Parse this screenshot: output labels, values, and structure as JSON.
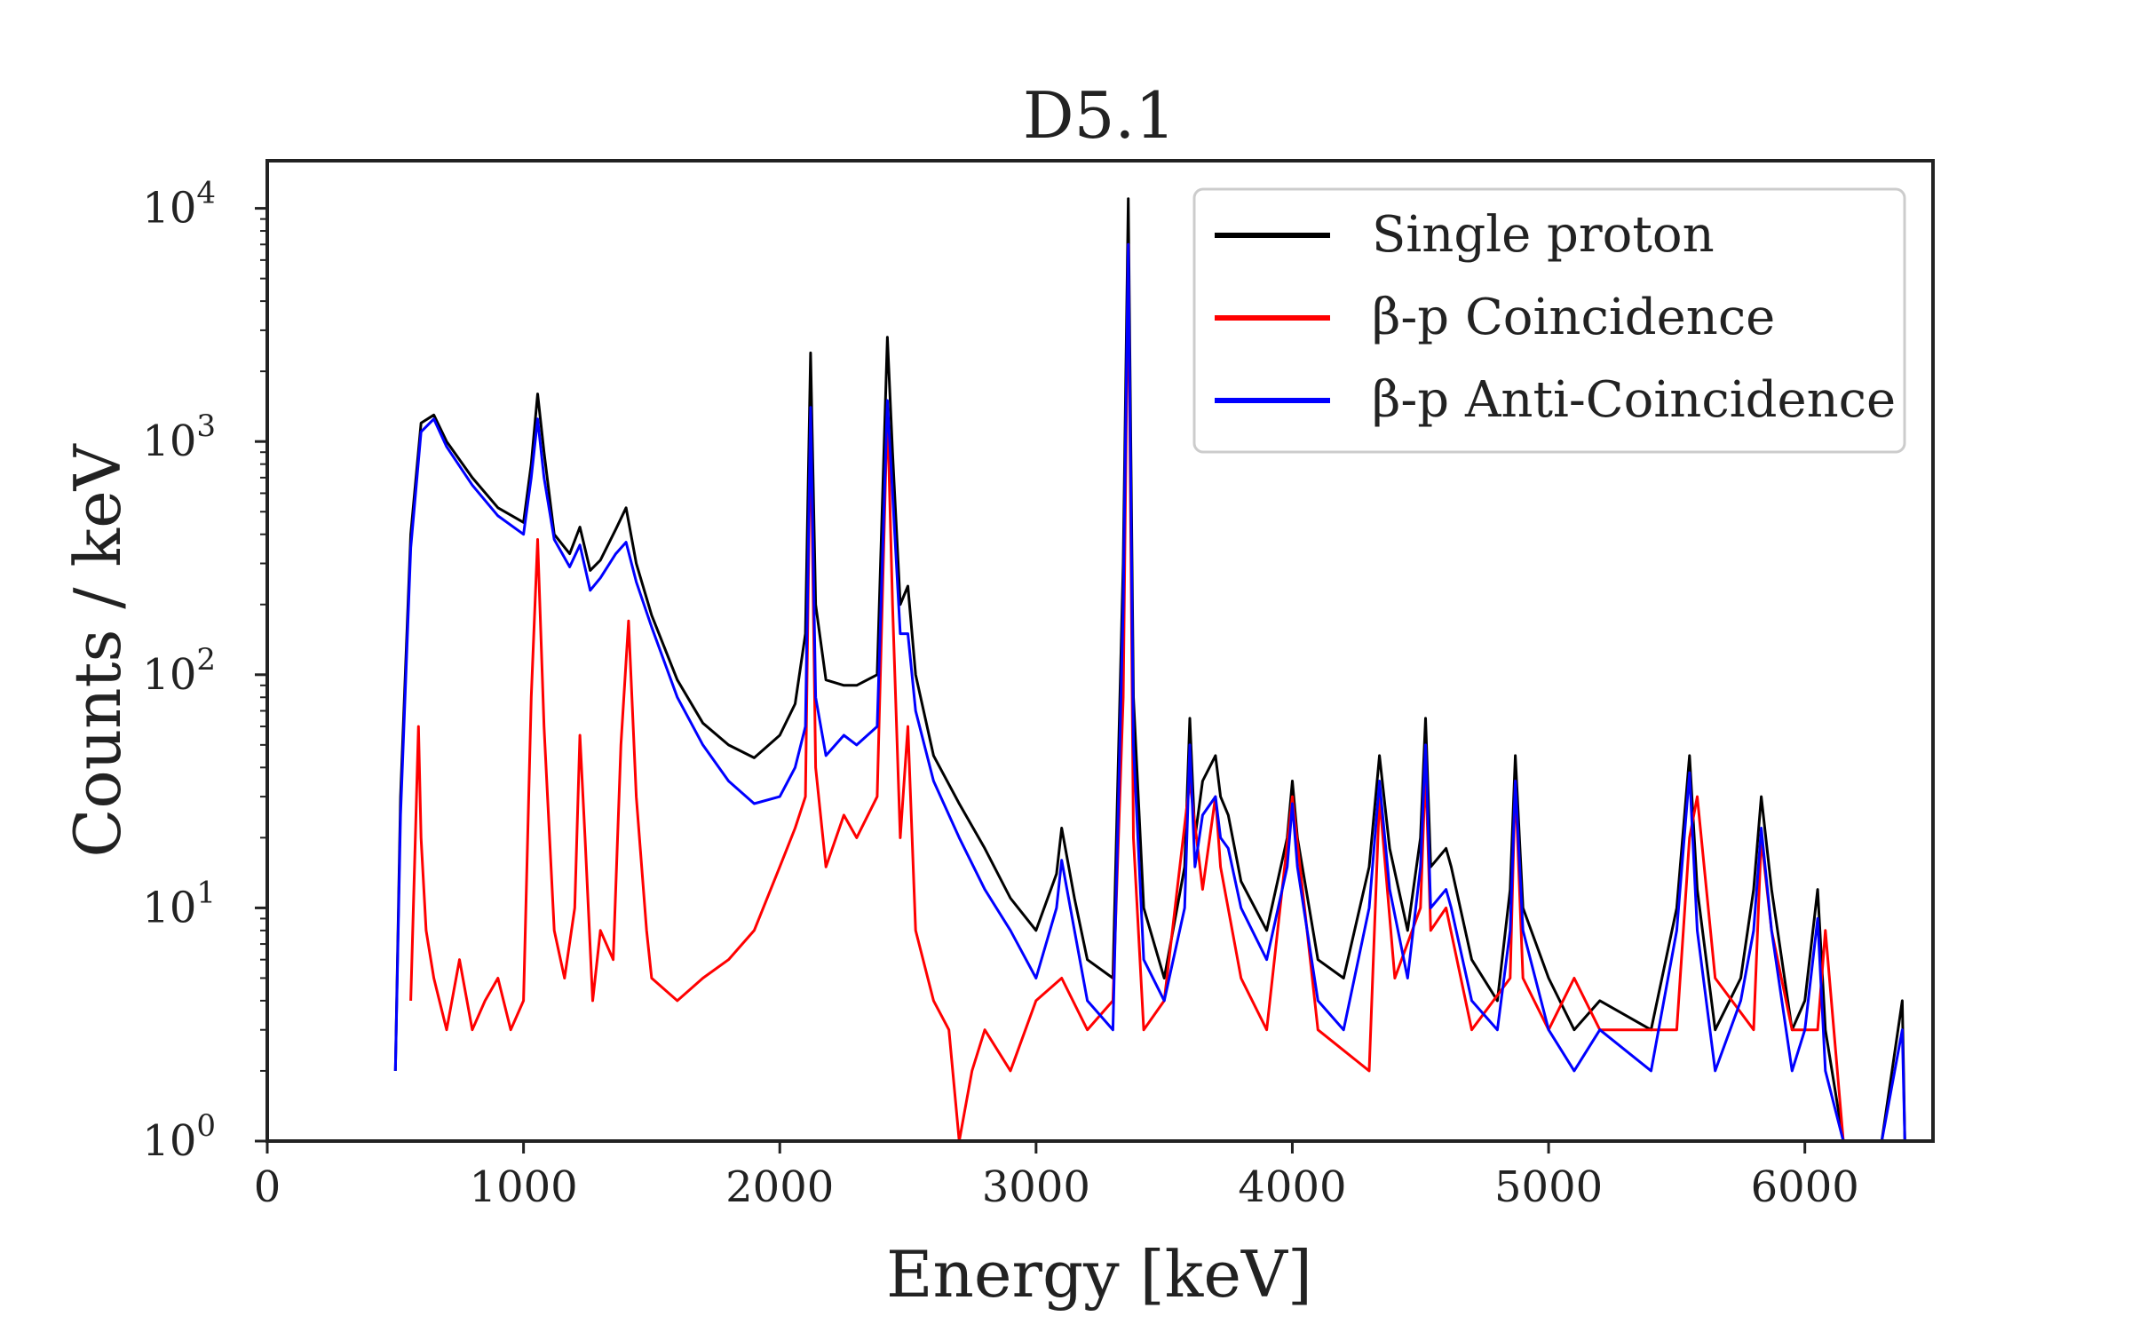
{
  "chart_data": {
    "type": "line",
    "title": "D5.1",
    "xlabel": "Energy [keV]",
    "ylabel": "Counts / keV",
    "xlim": [
      0,
      6500
    ],
    "ylim": [
      1,
      16000
    ],
    "yscale": "log",
    "grid": false,
    "legend_position": "top-right",
    "x_ticks": [
      {
        "value": 0,
        "label": "0"
      },
      {
        "value": 1000,
        "label": "1000"
      },
      {
        "value": 2000,
        "label": "2000"
      },
      {
        "value": 3000,
        "label": "3000"
      },
      {
        "value": 4000,
        "label": "4000"
      },
      {
        "value": 5000,
        "label": "5000"
      },
      {
        "value": 6000,
        "label": "6000"
      }
    ],
    "y_ticks": [
      {
        "value": 1,
        "base": "10",
        "exp": "0"
      },
      {
        "value": 10,
        "base": "10",
        "exp": "1"
      },
      {
        "value": 100,
        "base": "10",
        "exp": "2"
      },
      {
        "value": 1000,
        "base": "10",
        "exp": "3"
      },
      {
        "value": 10000,
        "base": "10",
        "exp": "4"
      }
    ],
    "series": [
      {
        "name": "Single proton",
        "color": "#000000",
        "x": [
          500,
          520,
          560,
          600,
          650,
          700,
          800,
          900,
          1000,
          1030,
          1055,
          1080,
          1120,
          1180,
          1220,
          1260,
          1300,
          1360,
          1400,
          1440,
          1500,
          1600,
          1700,
          1800,
          1900,
          2000,
          2060,
          2100,
          2120,
          2140,
          2180,
          2250,
          2300,
          2380,
          2420,
          2440,
          2470,
          2500,
          2530,
          2600,
          2700,
          2800,
          2900,
          3000,
          3080,
          3100,
          3150,
          3200,
          3300,
          3340,
          3360,
          3380,
          3420,
          3500,
          3580,
          3600,
          3620,
          3650,
          3700,
          3720,
          3750,
          3800,
          3900,
          3980,
          4000,
          4020,
          4100,
          4200,
          4300,
          4340,
          4380,
          4450,
          4500,
          4520,
          4540,
          4600,
          4620,
          4700,
          4800,
          4850,
          4870,
          4900,
          5000,
          5100,
          5200,
          5400,
          5500,
          5550,
          5580,
          5650,
          5750,
          5800,
          5830,
          5870,
          5950,
          6000,
          6050,
          6080,
          6150,
          6300,
          6380,
          6390
        ],
        "y": [
          2,
          30,
          400,
          1200,
          1300,
          1000,
          700,
          520,
          450,
          800,
          1600,
          900,
          400,
          330,
          430,
          280,
          310,
          420,
          520,
          300,
          180,
          95,
          62,
          50,
          44,
          55,
          75,
          150,
          2400,
          200,
          95,
          90,
          90,
          100,
          2800,
          900,
          200,
          240,
          100,
          45,
          28,
          18,
          11,
          8,
          14,
          22,
          11,
          6,
          5,
          300,
          11000,
          80,
          10,
          5,
          15,
          65,
          20,
          35,
          45,
          30,
          25,
          13,
          8,
          20,
          35,
          20,
          6,
          5,
          15,
          45,
          18,
          8,
          20,
          65,
          15,
          18,
          15,
          6,
          4,
          12,
          45,
          10,
          5,
          3,
          4,
          3,
          10,
          45,
          12,
          3,
          5,
          12,
          30,
          12,
          3,
          4,
          12,
          3,
          1,
          1,
          4,
          1
        ]
      },
      {
        "name": "β-p Coincidence",
        "color": "#ff0000",
        "x": [
          560,
          590,
          600,
          620,
          650,
          700,
          750,
          800,
          850,
          900,
          950,
          1000,
          1030,
          1055,
          1080,
          1120,
          1160,
          1200,
          1220,
          1240,
          1270,
          1300,
          1350,
          1380,
          1410,
          1440,
          1480,
          1500,
          1600,
          1700,
          1800,
          1900,
          2000,
          2060,
          2100,
          2120,
          2140,
          2180,
          2250,
          2300,
          2380,
          2420,
          2440,
          2470,
          2500,
          2530,
          2600,
          2660,
          2700,
          2750,
          2800,
          2900,
          3000,
          3100,
          3200,
          3300,
          3340,
          3360,
          3380,
          3420,
          3500,
          3600,
          3650,
          3700,
          3720,
          3800,
          3900,
          4000,
          4100,
          4300,
          4340,
          4400,
          4500,
          4520,
          4540,
          4600,
          4700,
          4850,
          4870,
          4900,
          5000,
          5100,
          5200,
          5400,
          5500,
          5550,
          5580,
          5650,
          5800,
          5830,
          5870,
          5950,
          6050,
          6080,
          6150
        ],
        "y": [
          4,
          60,
          20,
          8,
          5,
          3,
          6,
          3,
          4,
          5,
          3,
          4,
          80,
          380,
          60,
          8,
          5,
          10,
          55,
          20,
          4,
          8,
          6,
          50,
          170,
          30,
          8,
          5,
          4,
          5,
          6,
          8,
          15,
          22,
          30,
          1300,
          40,
          15,
          25,
          20,
          30,
          1400,
          200,
          20,
          60,
          8,
          4,
          3,
          1,
          2,
          3,
          2,
          4,
          5,
          3,
          4,
          80,
          7000,
          20,
          3,
          4,
          35,
          12,
          30,
          15,
          5,
          3,
          30,
          3,
          2,
          30,
          5,
          10,
          40,
          8,
          10,
          3,
          5,
          35,
          5,
          3,
          5,
          3,
          3,
          3,
          20,
          30,
          5,
          3,
          20,
          8,
          3,
          3,
          8,
          1
        ]
      },
      {
        "name": "β-p Anti-Coincidence",
        "color": "#0000ff",
        "x": [
          500,
          520,
          560,
          600,
          650,
          700,
          800,
          900,
          1000,
          1030,
          1055,
          1080,
          1120,
          1180,
          1220,
          1260,
          1300,
          1360,
          1400,
          1440,
          1500,
          1600,
          1700,
          1800,
          1900,
          2000,
          2060,
          2100,
          2120,
          2140,
          2180,
          2250,
          2300,
          2380,
          2420,
          2440,
          2470,
          2500,
          2530,
          2600,
          2700,
          2800,
          2900,
          3000,
          3080,
          3100,
          3150,
          3200,
          3300,
          3340,
          3360,
          3380,
          3420,
          3500,
          3580,
          3600,
          3620,
          3650,
          3700,
          3720,
          3750,
          3800,
          3900,
          3980,
          4000,
          4020,
          4100,
          4200,
          4300,
          4340,
          4380,
          4450,
          4500,
          4520,
          4540,
          4600,
          4620,
          4700,
          4800,
          4850,
          4870,
          4900,
          5000,
          5100,
          5200,
          5400,
          5500,
          5550,
          5580,
          5650,
          5750,
          5800,
          5830,
          5870,
          5950,
          6000,
          6050,
          6080,
          6150,
          6300,
          6380,
          6390
        ],
        "y": [
          2,
          25,
          350,
          1100,
          1250,
          950,
          650,
          480,
          400,
          700,
          1250,
          700,
          380,
          290,
          360,
          230,
          260,
          330,
          370,
          250,
          160,
          80,
          50,
          35,
          28,
          30,
          40,
          60,
          1400,
          80,
          45,
          55,
          50,
          60,
          1500,
          600,
          150,
          150,
          70,
          35,
          20,
          12,
          8,
          5,
          10,
          16,
          8,
          4,
          3,
          200,
          7000,
          50,
          6,
          4,
          10,
          50,
          15,
          25,
          30,
          20,
          18,
          10,
          6,
          15,
          28,
          15,
          4,
          3,
          10,
          35,
          12,
          5,
          15,
          50,
          10,
          12,
          10,
          4,
          3,
          8,
          35,
          8,
          3,
          2,
          3,
          2,
          8,
          38,
          8,
          2,
          4,
          8,
          22,
          8,
          2,
          3,
          9,
          2,
          1,
          1,
          3,
          1
        ]
      }
    ]
  }
}
